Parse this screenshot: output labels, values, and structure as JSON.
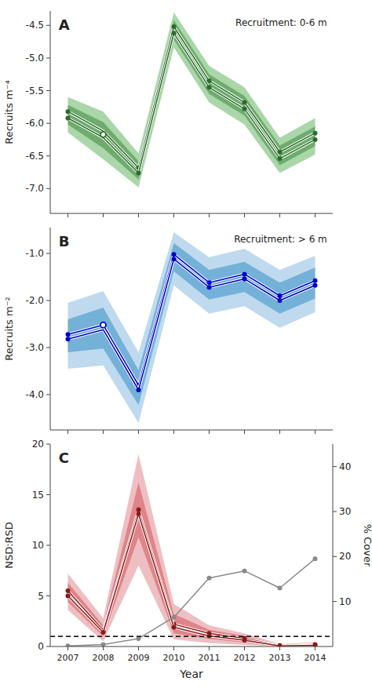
{
  "chart_data": [
    {
      "type": "line",
      "title": "A",
      "annotation": "Recruitment: 0-6 m",
      "y_label": "Recruits m⁻⁴",
      "x": [
        2007,
        2008,
        2009,
        2010,
        2011,
        2012,
        2013,
        2014
      ],
      "series": [
        {
          "type": "band",
          "color": "#8dc88d",
          "upper": [
            -5.6,
            -5.82,
            -6.46,
            -4.3,
            -5.12,
            -5.45,
            -6.22,
            -5.92
          ],
          "lower": [
            -6.14,
            -6.55,
            -6.98,
            -4.84,
            -5.68,
            -6.02,
            -6.76,
            -6.48
          ]
        },
        {
          "type": "band",
          "color": "#5a9e5a",
          "upper": [
            -5.72,
            -5.98,
            -6.58,
            -4.42,
            -5.25,
            -5.58,
            -6.34,
            -6.05
          ],
          "lower": [
            -6.02,
            -6.38,
            -6.86,
            -4.72,
            -5.55,
            -5.88,
            -6.64,
            -6.35
          ]
        },
        {
          "type": "line",
          "color": "#2d6b2d",
          "marker": "circle",
          "values": [
            -5.82,
            -6.12,
            -6.68,
            -4.52,
            -5.35,
            -5.68,
            -6.44,
            -6.15
          ]
        },
        {
          "type": "line",
          "color": "#2d6b2d",
          "marker": "circle",
          "values": [
            -5.92,
            -6.22,
            -6.76,
            -4.62,
            -5.45,
            -5.78,
            -6.54,
            -6.25
          ]
        }
      ],
      "open_point": {
        "x": 2008,
        "value": -6.17
      },
      "xlim": [
        2006.5,
        2014.5
      ],
      "xticks": [
        2007,
        2008,
        2009,
        2010,
        2011,
        2012,
        2013,
        2014
      ],
      "ylim": [
        -7.38,
        -4.28
      ],
      "yticks": [
        {
          "value": -7,
          "label": "-7.0"
        },
        -6.5,
        {
          "value": -6,
          "label": "-6.0"
        },
        -5.5,
        {
          "value": -5,
          "label": "-5.0"
        },
        -4.5
      ],
      "tick_labels": "y",
      "grid": false
    },
    {
      "type": "line",
      "title": "B",
      "annotation": "Recruitment: > 6 m",
      "y_label": "Recruits m⁻²",
      "x": [
        2007,
        2008,
        2009,
        2010,
        2011,
        2012,
        2013,
        2014
      ],
      "series": [
        {
          "type": "band",
          "color": "#aacde8",
          "upper": [
            -2.05,
            -1.8,
            -3.1,
            -0.55,
            -1.08,
            -0.9,
            -1.35,
            -1.05
          ],
          "lower": [
            -3.45,
            -3.38,
            -4.6,
            -1.68,
            -2.28,
            -2.12,
            -2.58,
            -2.25
          ]
        },
        {
          "type": "band",
          "color": "#5ba3d0",
          "upper": [
            -2.4,
            -2.15,
            -3.48,
            -0.78,
            -1.35,
            -1.18,
            -1.62,
            -1.3
          ],
          "lower": [
            -3.1,
            -3.02,
            -4.22,
            -1.38,
            -1.98,
            -1.82,
            -2.28,
            -1.96
          ]
        },
        {
          "type": "line",
          "color": "#0000cc",
          "marker": "circle",
          "values": [
            -2.72,
            -2.52,
            -3.8,
            -1.02,
            -1.62,
            -1.44,
            -1.9,
            -1.58
          ]
        },
        {
          "type": "line",
          "color": "#0000cc",
          "marker": "circle",
          "values": [
            -2.82,
            -2.62,
            -3.9,
            -1.12,
            -1.72,
            -1.54,
            -2.0,
            -1.68
          ]
        }
      ],
      "open_point": {
        "x": 2008,
        "value": -2.52
      },
      "xlim": [
        2006.5,
        2014.5
      ],
      "xticks": [
        2007,
        2008,
        2009,
        2010,
        2011,
        2012,
        2013,
        2014
      ],
      "ylim": [
        -4.75,
        -0.45
      ],
      "yticks": [
        {
          "value": -4,
          "label": "-4.0"
        },
        {
          "value": -3,
          "label": "-3.0"
        },
        {
          "value": -2,
          "label": "-2.0"
        },
        {
          "value": -1,
          "label": "-1.0"
        }
      ],
      "tick_labels": "y",
      "grid": false
    },
    {
      "type": "line",
      "title": "C",
      "x_label": "Year",
      "y_label": "NSD:RSD",
      "y2_label": "% Cover",
      "x": [
        2007,
        2008,
        2009,
        2010,
        2011,
        2012,
        2013,
        2014
      ],
      "series": [
        {
          "type": "band",
          "color": "#e8aaad",
          "upper": [
            7.2,
            2.8,
            19.0,
            4.2,
            2.1,
            1.3,
            0.28,
            0.42
          ],
          "lower": [
            3.6,
            0.5,
            8.0,
            0.7,
            0.35,
            0.15,
            0.0,
            0.0
          ]
        },
        {
          "type": "band",
          "color": "#d97075",
          "upper": [
            6.3,
            2.1,
            16.2,
            3.2,
            1.65,
            1.05,
            0.2,
            0.32
          ],
          "lower": [
            4.4,
            1.0,
            10.8,
            1.3,
            0.75,
            0.38,
            0.01,
            0.04
          ]
        },
        {
          "type": "line",
          "color": "#8b1a1a",
          "marker": "circle",
          "values": [
            5.5,
            1.6,
            13.5,
            2.2,
            1.3,
            0.8,
            0.1,
            0.2
          ]
        },
        {
          "type": "line",
          "color": "#8b1a1a",
          "marker": "circle",
          "values": [
            5.0,
            1.4,
            13.1,
            1.9,
            1.05,
            0.62,
            0.06,
            0.12
          ]
        },
        {
          "type": "line",
          "axis": "y2",
          "color": "#8a8a8a",
          "marker": "circle",
          "values": [
            0.12,
            0.42,
            1.75,
            6.5,
            15.2,
            16.8,
            13.0,
            19.5
          ]
        },
        {
          "type": "hline",
          "color": "#222222",
          "line_style": "dashed",
          "value": 1
        }
      ],
      "xlim": [
        2006.5,
        2014.5
      ],
      "xticks": [
        2007,
        2008,
        2009,
        2010,
        2011,
        2012,
        2013,
        2014
      ],
      "ylim": [
        0,
        20
      ],
      "yticks": [
        0,
        5,
        10,
        15,
        20
      ],
      "y2lim": [
        0,
        45
      ],
      "y2ticks": [
        10,
        20,
        30,
        40
      ],
      "grid": false
    }
  ]
}
